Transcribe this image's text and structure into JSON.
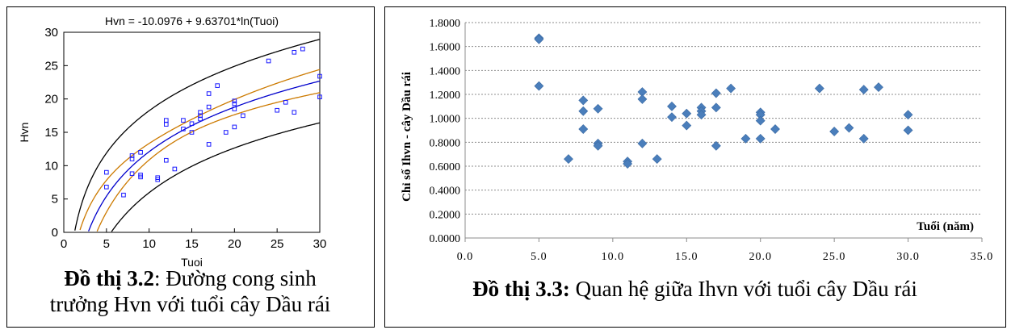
{
  "chart_data": [
    {
      "type": "scatter",
      "title": "Hvn = -10.0976 + 9.63701*ln(Tuoi)",
      "xlabel": "Tuoi",
      "ylabel": "Hvn",
      "xlim": [
        0,
        30
      ],
      "ylim": [
        0,
        30
      ],
      "xticks": [
        0,
        5,
        10,
        15,
        20,
        25,
        30
      ],
      "yticks": [
        0,
        5,
        10,
        15,
        20,
        25,
        30
      ],
      "model": {
        "a": -10.0976,
        "b": 9.63701
      },
      "colors": {
        "points": "#1a1aff",
        "fit": "#0000cc",
        "confidence": "#cc7a00",
        "prediction": "#000000"
      },
      "points": [
        [
          5,
          9.0
        ],
        [
          5,
          6.8
        ],
        [
          7,
          5.6
        ],
        [
          8,
          8.8
        ],
        [
          8,
          11.0
        ],
        [
          8,
          11.5
        ],
        [
          9,
          8.6
        ],
        [
          9,
          8.3
        ],
        [
          9,
          12.0
        ],
        [
          11,
          8.2
        ],
        [
          11,
          7.9
        ],
        [
          12,
          10.8
        ],
        [
          12,
          16.8
        ],
        [
          12,
          16.2
        ],
        [
          13,
          9.5
        ],
        [
          14,
          15.5
        ],
        [
          14,
          16.8
        ],
        [
          15,
          15.0
        ],
        [
          15,
          16.3
        ],
        [
          16,
          17.5
        ],
        [
          16,
          17.0
        ],
        [
          16,
          18.0
        ],
        [
          17,
          13.2
        ],
        [
          17,
          18.8
        ],
        [
          17,
          20.8
        ],
        [
          18,
          22.0
        ],
        [
          19,
          15.0
        ],
        [
          20,
          15.8
        ],
        [
          20,
          18.5
        ],
        [
          20,
          19.3
        ],
        [
          20,
          19.7
        ],
        [
          21,
          17.5
        ],
        [
          24,
          25.7
        ],
        [
          25,
          18.3
        ],
        [
          26,
          19.5
        ],
        [
          27,
          18.0
        ],
        [
          27,
          27.0
        ],
        [
          28,
          27.5
        ],
        [
          30,
          20.3
        ],
        [
          30,
          23.4
        ]
      ]
    },
    {
      "type": "scatter",
      "xlabel": "Tuổi (năm)",
      "ylabel": "Chỉ số Ihvn - cây Dầu rái",
      "xlim": [
        0,
        35
      ],
      "ylim": [
        0,
        1.8
      ],
      "xtick_labels": [
        "0.0",
        "5.0",
        "10.0",
        "15.0",
        "20.0",
        "25.0",
        "30.0",
        "35.0"
      ],
      "ytick_labels": [
        "0.0000",
        "0.2000",
        "0.4000",
        "0.6000",
        "0.8000",
        "1.0000",
        "1.2000",
        "1.4000",
        "1.6000",
        "1.8000"
      ],
      "grid": true,
      "colors": {
        "points": "#4a7ebb",
        "grid": "#8c8c8c"
      },
      "points": [
        [
          5,
          1.67
        ],
        [
          5,
          1.66
        ],
        [
          5,
          1.27
        ],
        [
          7,
          0.66
        ],
        [
          8,
          1.15
        ],
        [
          8,
          1.06
        ],
        [
          8,
          0.91
        ],
        [
          9,
          1.08
        ],
        [
          9,
          0.79
        ],
        [
          9,
          0.77
        ],
        [
          11,
          0.64
        ],
        [
          11,
          0.62
        ],
        [
          12,
          1.22
        ],
        [
          12,
          1.16
        ],
        [
          12,
          0.79
        ],
        [
          13,
          0.66
        ],
        [
          14,
          1.1
        ],
        [
          14,
          1.01
        ],
        [
          15,
          1.04
        ],
        [
          15,
          0.94
        ],
        [
          16,
          1.09
        ],
        [
          16,
          1.06
        ],
        [
          16,
          1.03
        ],
        [
          17,
          1.21
        ],
        [
          17,
          1.09
        ],
        [
          17,
          0.77
        ],
        [
          18,
          1.25
        ],
        [
          19,
          0.83
        ],
        [
          20,
          1.05
        ],
        [
          20,
          1.03
        ],
        [
          20,
          0.98
        ],
        [
          20,
          0.83
        ],
        [
          21,
          0.91
        ],
        [
          24,
          1.25
        ],
        [
          25,
          0.89
        ],
        [
          26,
          0.92
        ],
        [
          27,
          1.24
        ],
        [
          27,
          0.83
        ],
        [
          28,
          1.26
        ],
        [
          30,
          1.03
        ],
        [
          30,
          0.9
        ]
      ]
    }
  ],
  "captions": {
    "left": {
      "label": "Đồ thị 3.2",
      "text_line1": ": Đường cong sinh",
      "text_line2": "trưởng Hvn với tuổi cây Dầu rái"
    },
    "right": {
      "label": "Đồ thị 3.3:",
      "text": " Quan hệ giữa Ihvn với tuổi cây Dầu rái"
    }
  }
}
